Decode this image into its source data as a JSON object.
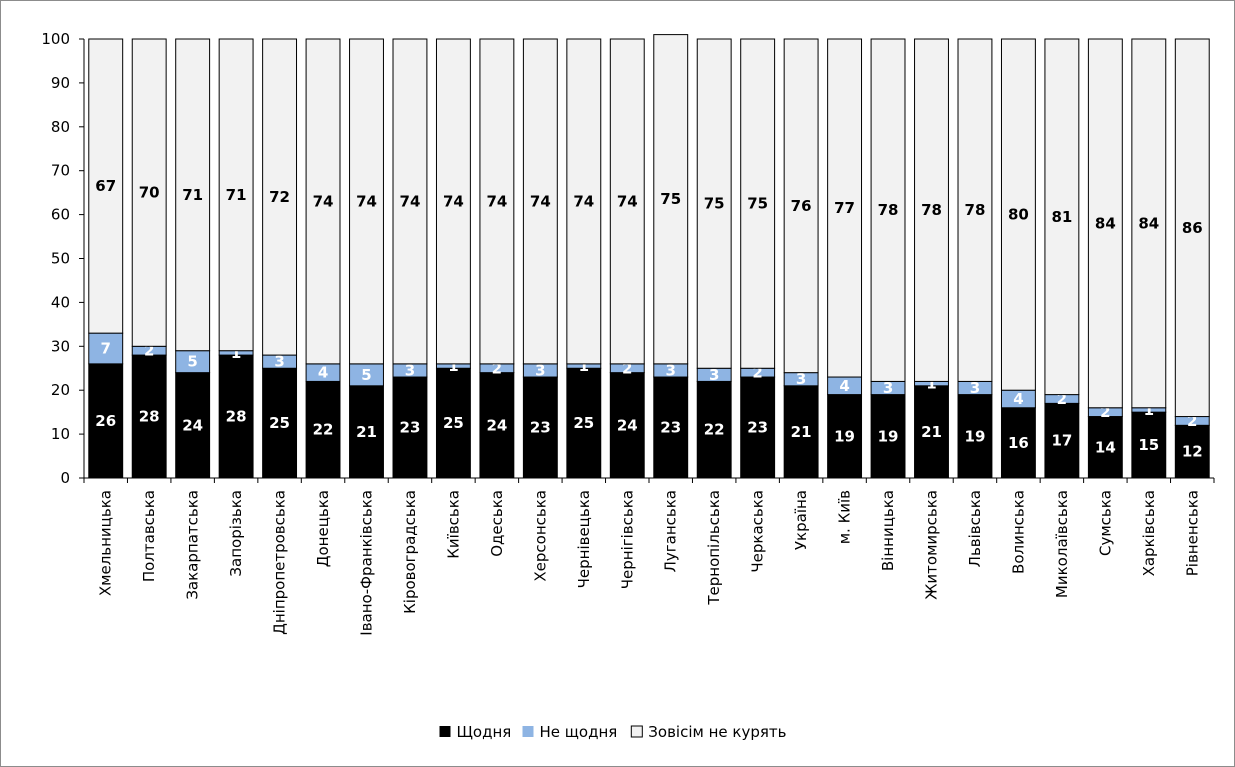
{
  "chart_data": {
    "type": "bar",
    "stacked": true,
    "categories": [
      "Хмельницька",
      "Полтавська",
      "Закарпатська",
      "Запорізька",
      "Дніпропетровська",
      "Донецька",
      "Івано-Франківська",
      "Кіровоградська",
      "Київська",
      "Одеська",
      "Херсонська",
      "Чернівецька",
      "Чернігівська",
      "Луганська",
      "Тернопільська",
      "Черкаська",
      "Україна",
      "м. Київ",
      "Вінницька",
      "Житомирська",
      "Львівська",
      "Волинська",
      "Миколаївська",
      "Сумська",
      "Харківська",
      "Рівненська"
    ],
    "series": [
      {
        "name": "Щодня",
        "color": "#000000",
        "label_color": "#ffffff",
        "values": [
          26,
          28,
          24,
          28,
          25,
          22,
          21,
          23,
          25,
          24,
          23,
          25,
          24,
          23,
          22,
          23,
          21,
          19,
          19,
          21,
          19,
          16,
          17,
          14,
          15,
          12
        ]
      },
      {
        "name": "Не щодня",
        "color": "#8eb4e3",
        "label_color": "#ffffff",
        "values": [
          7,
          2,
          5,
          1,
          3,
          4,
          5,
          3,
          1,
          2,
          3,
          1,
          2,
          3,
          3,
          2,
          3,
          4,
          3,
          1,
          3,
          4,
          2,
          2,
          1,
          2
        ]
      },
      {
        "name": "Зовісім не курять",
        "color": "#f2f2f2",
        "label_color": "#000000",
        "values": [
          67,
          70,
          71,
          71,
          72,
          74,
          74,
          74,
          74,
          74,
          74,
          74,
          74,
          75,
          75,
          75,
          76,
          77,
          78,
          78,
          78,
          80,
          81,
          84,
          84,
          86
        ]
      }
    ],
    "ylim": [
      0,
      100
    ],
    "yticks": [
      "0",
      "10",
      "20",
      "30",
      "40",
      "50",
      "60",
      "70",
      "80",
      "90",
      "100"
    ],
    "legend_position": "bottom",
    "grid": false
  }
}
